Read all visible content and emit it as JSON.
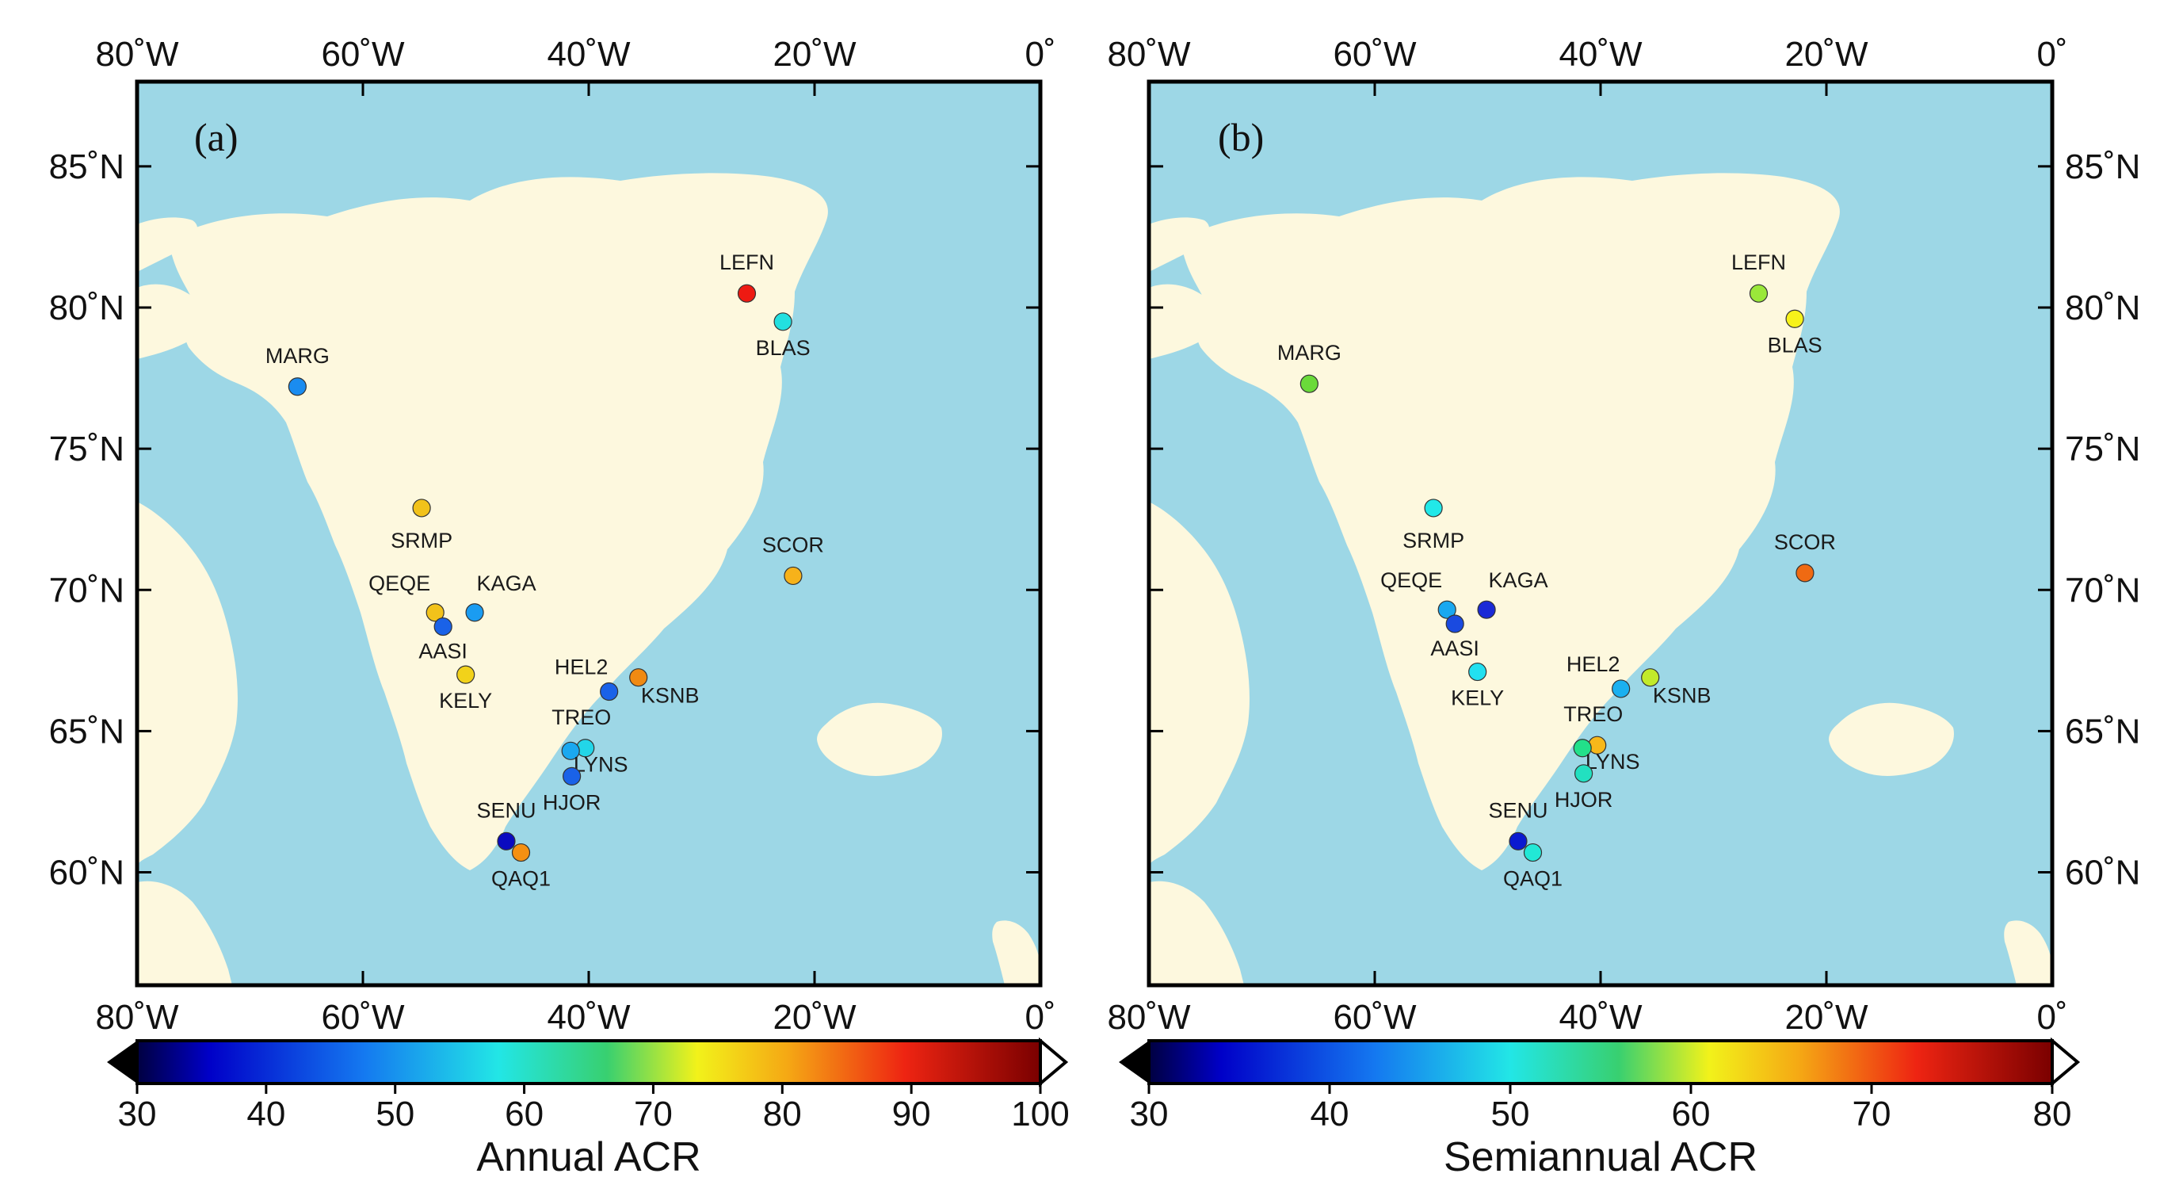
{
  "panels": [
    {
      "id": "a",
      "letter": "(a)",
      "colorbar": {
        "label": "Annual ACR",
        "min": 30,
        "max": 100,
        "ticks": [
          30,
          40,
          50,
          60,
          70,
          80,
          90,
          100
        ]
      },
      "stations": [
        {
          "name": "LEFN",
          "lon": -26.0,
          "lat": 80.5,
          "color": "#ee1a12"
        },
        {
          "name": "BLAS",
          "lon": -22.8,
          "lat": 79.5,
          "color": "#22e0e0"
        },
        {
          "name": "MARG",
          "lon": -65.8,
          "lat": 77.2,
          "color": "#1a8cf0"
        },
        {
          "name": "SRMP",
          "lon": -54.8,
          "lat": 72.9,
          "color": "#f2c21a"
        },
        {
          "name": "SCOR",
          "lon": -21.9,
          "lat": 70.5,
          "color": "#f7b21a"
        },
        {
          "name": "QEQE",
          "lon": -53.6,
          "lat": 69.2,
          "color": "#f2c21a"
        },
        {
          "name": "KAGA",
          "lon": -50.1,
          "lat": 69.2,
          "color": "#1a9cf2"
        },
        {
          "name": "AASI",
          "lon": -52.9,
          "lat": 68.7,
          "color": "#1a62e8"
        },
        {
          "name": "KELY",
          "lon": -50.9,
          "lat": 67.0,
          "color": "#f2d21a"
        },
        {
          "name": "HEL2",
          "lon": -38.2,
          "lat": 66.4,
          "color": "#1a62e8"
        },
        {
          "name": "KSNB",
          "lon": -35.6,
          "lat": 66.9,
          "color": "#f08a12"
        },
        {
          "name": "TREO",
          "lon": -40.3,
          "lat": 64.4,
          "color": "#22d6e8"
        },
        {
          "name": "LYNS",
          "lon": -41.6,
          "lat": 64.3,
          "color": "#1aa8f0"
        },
        {
          "name": "HJOR",
          "lon": -41.5,
          "lat": 63.4,
          "color": "#1a62e8"
        },
        {
          "name": "SENU",
          "lon": -47.3,
          "lat": 61.1,
          "color": "#0a0ac0"
        },
        {
          "name": "QAQ1",
          "lon": -46.0,
          "lat": 60.7,
          "color": "#f59012"
        }
      ]
    },
    {
      "id": "b",
      "letter": "(b)",
      "colorbar": {
        "label": "Semiannual ACR",
        "min": 30,
        "max": 80,
        "ticks": [
          30,
          40,
          50,
          60,
          70,
          80
        ]
      },
      "stations": [
        {
          "name": "LEFN",
          "lon": -26.0,
          "lat": 80.5,
          "color": "#9ae83a"
        },
        {
          "name": "BLAS",
          "lon": -22.8,
          "lat": 79.6,
          "color": "#f7f21a"
        },
        {
          "name": "MARG",
          "lon": -65.8,
          "lat": 77.3,
          "color": "#6ada3a"
        },
        {
          "name": "SRMP",
          "lon": -54.8,
          "lat": 72.9,
          "color": "#22e8e8"
        },
        {
          "name": "SCOR",
          "lon": -21.9,
          "lat": 70.6,
          "color": "#f06a12"
        },
        {
          "name": "QEQE",
          "lon": -53.6,
          "lat": 69.3,
          "color": "#1aa8f0"
        },
        {
          "name": "KAGA",
          "lon": -50.1,
          "lat": 69.3,
          "color": "#1a2ad6"
        },
        {
          "name": "AASI",
          "lon": -52.9,
          "lat": 68.8,
          "color": "#1a4ae0"
        },
        {
          "name": "KELY",
          "lon": -50.9,
          "lat": 67.1,
          "color": "#22e0f0"
        },
        {
          "name": "HEL2",
          "lon": -38.2,
          "lat": 66.5,
          "color": "#1ab0f0"
        },
        {
          "name": "KSNB",
          "lon": -35.6,
          "lat": 66.9,
          "color": "#c2ea2a"
        },
        {
          "name": "TREO",
          "lon": -40.3,
          "lat": 64.5,
          "color": "#f7b81a"
        },
        {
          "name": "LYNS",
          "lon": -41.6,
          "lat": 64.4,
          "color": "#22e08a"
        },
        {
          "name": "HJOR",
          "lon": -41.5,
          "lat": 63.5,
          "color": "#22e0c0"
        },
        {
          "name": "SENU",
          "lon": -47.3,
          "lat": 61.1,
          "color": "#0a1ad0"
        },
        {
          "name": "QAQ1",
          "lon": -46.0,
          "lat": 60.7,
          "color": "#22e8d6"
        }
      ]
    }
  ],
  "axes": {
    "lon_ticks": [
      "80˚W",
      "60˚W",
      "40˚W",
      "20˚W",
      "0˚"
    ],
    "lat_ticks": [
      "85˚N",
      "80˚N",
      "75˚N",
      "70˚N",
      "65˚N",
      "60˚N"
    ],
    "lon_range": [
      -80,
      0
    ],
    "lat_range": [
      56,
      88
    ]
  },
  "colors": {
    "ocean": "#9dd7e6",
    "land": "#fdf8de"
  }
}
